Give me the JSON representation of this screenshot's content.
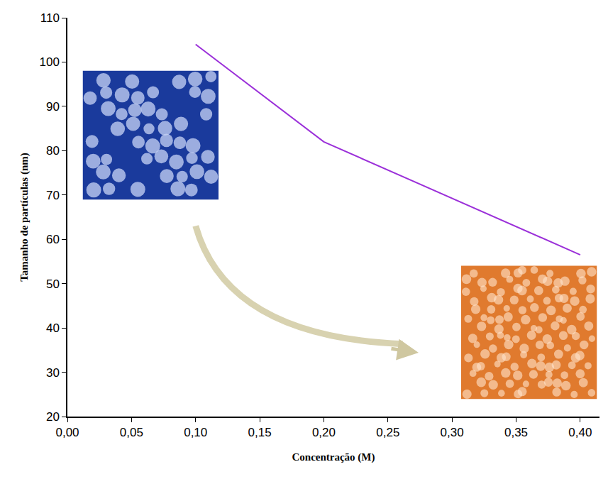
{
  "chart_data": {
    "type": "line",
    "x_label": "Concentração (M)",
    "y_label": "Tamanho de partículas (nm)",
    "x": [
      0.1,
      0.2,
      0.4
    ],
    "values": [
      104,
      82,
      56.5
    ],
    "color": "#9b30d9",
    "xlim": [
      0,
      0.415
    ],
    "ylim": [
      20,
      110
    ],
    "xticks": [
      {
        "value": 0,
        "label": "0,00"
      },
      {
        "value": 0.05,
        "label": "0,05"
      },
      {
        "value": 0.1,
        "label": "0,10"
      },
      {
        "value": 0.15,
        "label": "0,15"
      },
      {
        "value": 0.2,
        "label": "0,20"
      },
      {
        "value": 0.25,
        "label": "0,25"
      },
      {
        "value": 0.3,
        "label": "0,30"
      },
      {
        "value": 0.35,
        "label": "0,35"
      },
      {
        "value": 0.4,
        "label": "0,40"
      }
    ],
    "yticks": [
      20,
      30,
      40,
      50,
      60,
      70,
      80,
      90,
      100,
      110
    ],
    "grid": false
  }
}
